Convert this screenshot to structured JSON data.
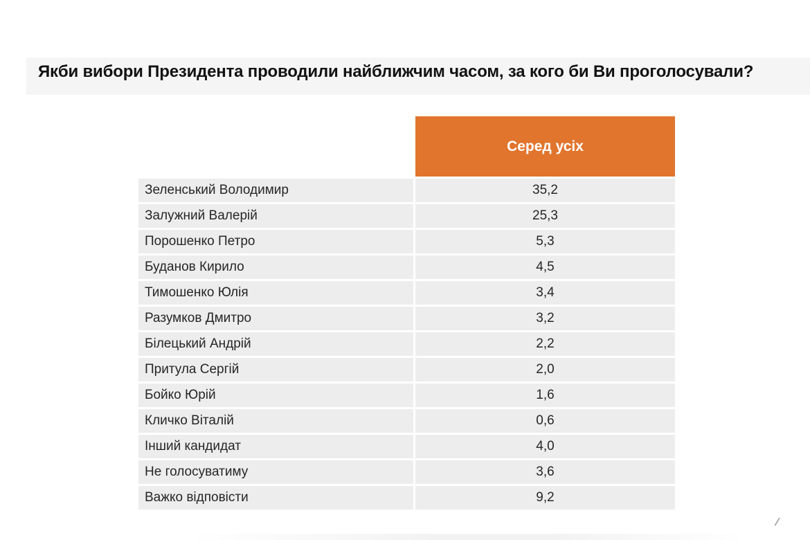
{
  "page": {
    "title": "Якби вибори Президента проводили найближчим часом, за кого би Ви проголосували?",
    "watermark_mark": "/"
  },
  "chart_data": {
    "type": "table",
    "title": "Якби вибори Президента проводили найближчим часом, за кого би Ви проголосували?",
    "column_header": "Серед усіх",
    "columns": [
      "",
      "Серед усіх"
    ],
    "rows": [
      {
        "label": "Зеленський Володимир",
        "value": "35,2"
      },
      {
        "label": "Залужний Валерій",
        "value": "25,3"
      },
      {
        "label": "Порошенко Петро",
        "value": "5,3"
      },
      {
        "label": "Буданов Кирило",
        "value": "4,5"
      },
      {
        "label": "Тимошенко Юлія",
        "value": "3,4"
      },
      {
        "label": "Разумков Дмитро",
        "value": "3,2"
      },
      {
        "label": "Білецький Андрій",
        "value": "2,2"
      },
      {
        "label": "Притула Сергій",
        "value": "2,0"
      },
      {
        "label": "Бойко Юрій",
        "value": "1,6"
      },
      {
        "label": "Кличко Віталій",
        "value": "0,6"
      },
      {
        "label": "Інший кандидат",
        "value": "4,0"
      },
      {
        "label": "Не голосуватиму",
        "value": "3,6"
      },
      {
        "label": "Важко відповісти",
        "value": "9,2"
      }
    ],
    "values_numeric": [
      35.2,
      25.3,
      5.3,
      4.5,
      3.4,
      3.2,
      2.2,
      2.0,
      1.6,
      0.6,
      4.0,
      3.6,
      9.2
    ],
    "value_unit": "percent",
    "legend_position": "none",
    "grid": false
  },
  "colors": {
    "header_bg": "#E1752D",
    "header_text": "#FFFFFF",
    "row_bg": "#EDEDED",
    "row_text": "#262626",
    "title_text": "#121212",
    "title_band_bg": "#F5F5F5"
  }
}
